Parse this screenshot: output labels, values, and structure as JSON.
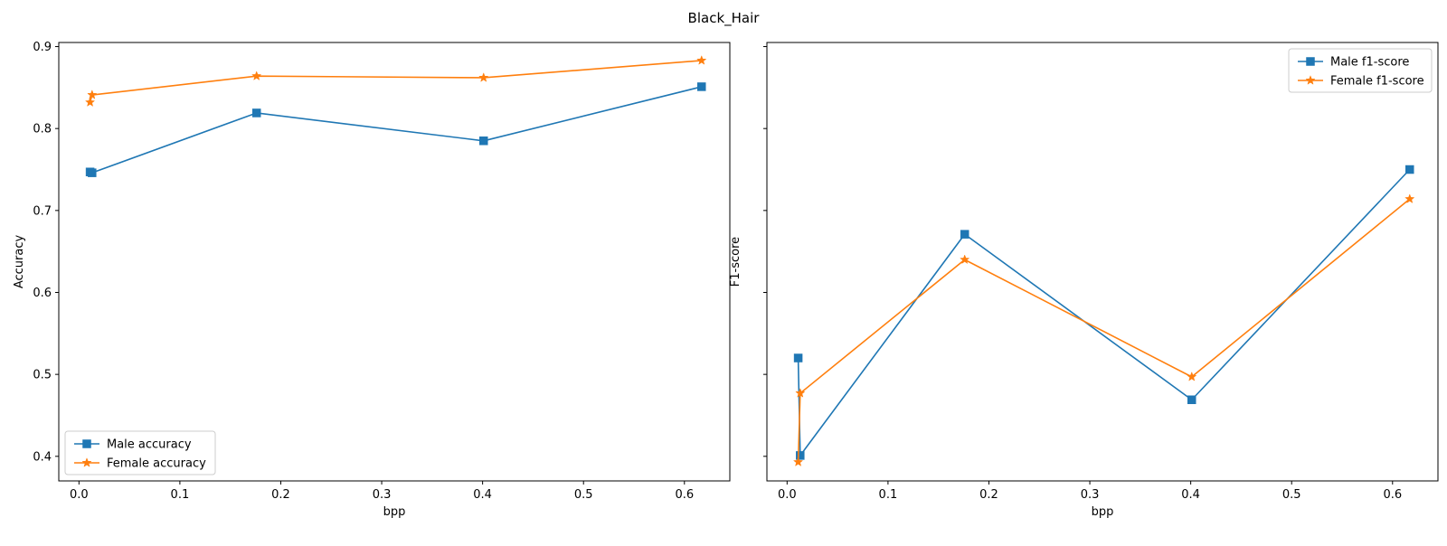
{
  "figure": {
    "title": "Black_Hair"
  },
  "chart_data": [
    {
      "type": "line",
      "title": "",
      "xlabel": "bpp",
      "ylabel": "Accuracy",
      "xlim": [
        -0.02,
        0.645
      ],
      "ylim": [
        0.37,
        0.905
      ],
      "xticks": [
        0.0,
        0.1,
        0.2,
        0.3,
        0.4,
        0.5,
        0.6
      ],
      "xtick_labels": [
        "0.0",
        "0.1",
        "0.2",
        "0.3",
        "0.4",
        "0.5",
        "0.6"
      ],
      "yticks": [
        0.4,
        0.5,
        0.6,
        0.7,
        0.8,
        0.9
      ],
      "ytick_labels": [
        "0.4",
        "0.5",
        "0.6",
        "0.7",
        "0.8",
        "0.9"
      ],
      "legend_position": "lower-left",
      "grid": false,
      "series": [
        {
          "name": "Male accuracy",
          "color": "#1f77b4",
          "marker": "square",
          "x": [
            0.011,
            0.013,
            0.176,
            0.401,
            0.617
          ],
          "y": [
            0.747,
            0.746,
            0.819,
            0.785,
            0.851
          ]
        },
        {
          "name": "Female accuracy",
          "color": "#ff7f0e",
          "marker": "star",
          "x": [
            0.011,
            0.013,
            0.176,
            0.401,
            0.617
          ],
          "y": [
            0.832,
            0.841,
            0.864,
            0.862,
            0.883
          ]
        }
      ]
    },
    {
      "type": "line",
      "title": "",
      "xlabel": "bpp",
      "ylabel": "F1-score",
      "xlim": [
        -0.02,
        0.645
      ],
      "ylim": [
        0.37,
        0.905
      ],
      "xticks": [
        0.0,
        0.1,
        0.2,
        0.3,
        0.4,
        0.5,
        0.6
      ],
      "xtick_labels": [
        "0.0",
        "0.1",
        "0.2",
        "0.3",
        "0.4",
        "0.5",
        "0.6"
      ],
      "yticks": [
        0.4,
        0.5,
        0.6,
        0.7,
        0.8,
        0.9
      ],
      "ytick_labels": [],
      "legend_position": "upper-right",
      "grid": false,
      "series": [
        {
          "name": "Male f1-score",
          "color": "#1f77b4",
          "marker": "square",
          "x": [
            0.011,
            0.013,
            0.176,
            0.401,
            0.617
          ],
          "y": [
            0.52,
            0.401,
            0.671,
            0.469,
            0.75
          ]
        },
        {
          "name": "Female f1-score",
          "color": "#ff7f0e",
          "marker": "star",
          "x": [
            0.011,
            0.013,
            0.176,
            0.401,
            0.617
          ],
          "y": [
            0.393,
            0.477,
            0.64,
            0.497,
            0.714
          ]
        }
      ]
    }
  ]
}
